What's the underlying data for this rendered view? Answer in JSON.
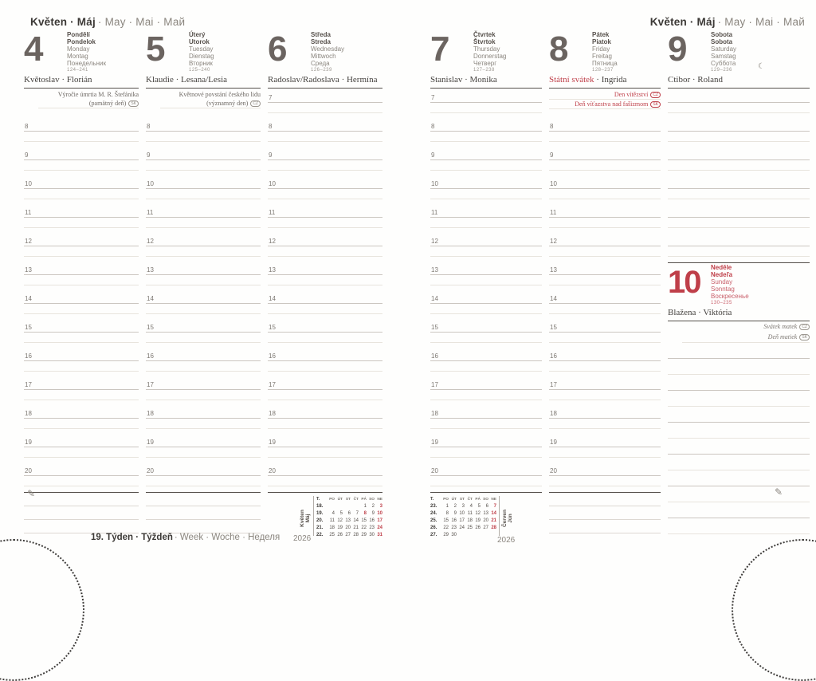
{
  "month_header": {
    "primary": "Květen · Máj",
    "secondary": "· May · Mai · Май"
  },
  "footer": {
    "week_primary": "19. Týden · Týždeň",
    "week_secondary": "· Week · Woche · Неделя"
  },
  "icons": {
    "pencil": "✎",
    "moon": "☾"
  },
  "hours": {
    "first": 7,
    "last": 20
  },
  "days": [
    {
      "number": "4",
      "names_bold": [
        "Pondělí",
        "Pondelok"
      ],
      "names": [
        "Monday",
        "Montag",
        "Понедельник"
      ],
      "day_of_year": "124–241",
      "nameday": "Květoslav · Florián",
      "first_hour": 8,
      "notes_red": false,
      "notes": [
        {
          "text": "Výročie úmrtia M. R. Štefánika"
        },
        {
          "text": "(pamätný deň)",
          "badge": "SK"
        }
      ]
    },
    {
      "number": "5",
      "names_bold": [
        "Úterý",
        "Utorok"
      ],
      "names": [
        "Tuesday",
        "Dienstag",
        "Вторник"
      ],
      "day_of_year": "125–240",
      "nameday": "Klaudie · Lesana/Lesia",
      "first_hour": 8,
      "notes_red": false,
      "notes": [
        {
          "text": "Květnové povstání českého lidu"
        },
        {
          "text": "(významný den)",
          "badge": "CZ"
        }
      ]
    },
    {
      "number": "6",
      "names_bold": [
        "Středa",
        "Streda"
      ],
      "names": [
        "Wednesday",
        "Mittwoch",
        "Среда"
      ],
      "day_of_year": "126–239",
      "nameday": "Radoslav/Radoslava · Hermína",
      "first_hour": 7,
      "notes": []
    },
    {
      "number": "7",
      "names_bold": [
        "Čtvrtek",
        "Štvrtok"
      ],
      "names": [
        "Thursday",
        "Donnerstag",
        "Четверг"
      ],
      "day_of_year": "127–238",
      "nameday": "Stanislav · Monika",
      "first_hour": 7,
      "notes": []
    },
    {
      "number": "8",
      "names_bold": [
        "Pátek",
        "Piatok"
      ],
      "names": [
        "Friday",
        "Freitag",
        "Пятница"
      ],
      "day_of_year": "128–237",
      "nameday_holiday": "Státní svátek",
      "nameday": " · Ingrida",
      "first_hour": 8,
      "notes_red": true,
      "notes": [
        {
          "text": "Den vítězství",
          "badge": "CZ"
        },
        {
          "text": "Deň víťazstva nad fašizmom",
          "badge": "SK"
        }
      ]
    },
    {
      "number": "9",
      "names_bold": [
        "Sobota",
        "Sobota"
      ],
      "names": [
        "Saturday",
        "Samstag",
        "Суббота"
      ],
      "day_of_year": "129–236",
      "nameday": "Ctibor · Roland",
      "moon_icon": "☾",
      "unlabeled": true,
      "notes": []
    }
  ],
  "sunday": {
    "number": "10",
    "names_bold": [
      "Neděle",
      "Nedeľa"
    ],
    "names": [
      "Sunday",
      "Sonntag",
      "Воскресенье"
    ],
    "day_of_year": "130–235",
    "nameday": "Blažena · Viktória",
    "notes": [
      {
        "text": "Svátek matek",
        "badge": "CZ"
      },
      {
        "text": "Deň matiek",
        "badge": "SK"
      }
    ]
  },
  "mini_calendars": [
    {
      "month_labels": [
        "Květen",
        "Máj"
      ],
      "year": "2026",
      "weekday_header": [
        "T.",
        "PO",
        "ÚT",
        "ST",
        "ČT",
        "PÁ",
        "SO",
        "NE"
      ],
      "weeks": [
        [
          "18.",
          "",
          "",
          "",
          "",
          "1",
          "2",
          "3"
        ],
        [
          "19.",
          "4",
          "5",
          "6",
          "7",
          "8",
          "9",
          "10"
        ],
        [
          "20.",
          "11",
          "12",
          "13",
          "14",
          "15",
          "16",
          "17"
        ],
        [
          "21.",
          "18",
          "19",
          "20",
          "21",
          "22",
          "23",
          "24"
        ],
        [
          "22.",
          "25",
          "26",
          "27",
          "28",
          "29",
          "30",
          "31"
        ]
      ],
      "red_days": [
        "3",
        "8",
        "10",
        "17",
        "24",
        "31"
      ]
    },
    {
      "month_labels": [
        "Červen",
        "Jún"
      ],
      "year": "2026",
      "weekday_header": [
        "T.",
        "PO",
        "ÚT",
        "ST",
        "ČT",
        "PÁ",
        "SO",
        "NE"
      ],
      "weeks": [
        [
          "23.",
          "1",
          "2",
          "3",
          "4",
          "5",
          "6",
          "7"
        ],
        [
          "24.",
          "8",
          "9",
          "10",
          "11",
          "12",
          "13",
          "14"
        ],
        [
          "25.",
          "15",
          "16",
          "17",
          "18",
          "19",
          "20",
          "21"
        ],
        [
          "26.",
          "22",
          "23",
          "24",
          "25",
          "26",
          "27",
          "28"
        ],
        [
          "27.",
          "29",
          "30",
          "",
          "",
          "",
          "",
          ""
        ]
      ],
      "red_days": [
        "7",
        "14",
        "21",
        "28"
      ]
    }
  ],
  "colors": {
    "accent_red": "#bf3f49",
    "text_dark": "#3c3936",
    "text_gray": "#8b867f",
    "number_gray": "#6b6460",
    "line": "#cbc6c0",
    "line_faint": "#e8e4dd",
    "rule_dark": "#55504b"
  }
}
